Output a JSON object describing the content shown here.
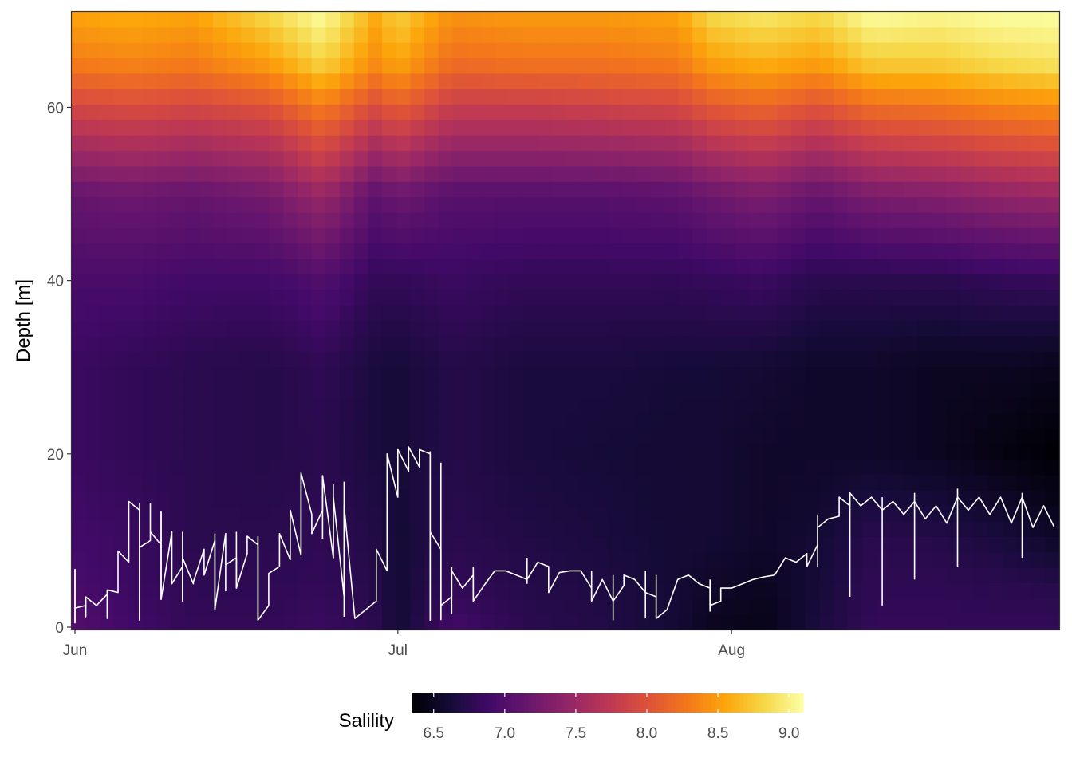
{
  "chart_data": {
    "type": "heatmap",
    "title": "",
    "xlabel": "",
    "ylabel": "Depth [m]",
    "x_range": [
      "2000-06-01",
      "2000-08-31"
    ],
    "ylim": [
      0,
      71
    ],
    "x_ticks": [
      {
        "date": "2000-06-01",
        "label": "Jun"
      },
      {
        "date": "2000-07-01",
        "label": "Jul"
      },
      {
        "date": "2000-08-01",
        "label": "Aug"
      }
    ],
    "y_ticks": [
      0,
      20,
      40,
      60
    ],
    "colorscale": "inferno",
    "grid": false,
    "legend": {
      "title": "Salility",
      "position": "bottom",
      "range": [
        6.35,
        9.1
      ],
      "ticks": [
        6.5,
        7.0,
        7.5,
        8.0,
        8.5,
        9.0
      ],
      "tick_labels": [
        "6.5",
        "7.0",
        "7.5",
        "8.0",
        "8.5",
        "9.0"
      ]
    },
    "salinity_profile": {
      "depths": [
        0,
        5,
        10,
        20,
        30,
        40,
        50,
        60,
        65,
        71
      ],
      "columns": [
        {
          "date": "2000-06-01",
          "values": [
            7.0,
            6.95,
            6.9,
            6.85,
            6.85,
            6.95,
            7.15,
            7.9,
            8.3,
            8.55
          ]
        },
        {
          "date": "2000-06-06",
          "values": [
            6.9,
            6.85,
            6.85,
            6.8,
            6.8,
            6.95,
            7.2,
            7.95,
            8.35,
            8.6
          ]
        },
        {
          "date": "2000-06-12",
          "values": [
            6.8,
            6.78,
            6.75,
            6.75,
            6.75,
            6.9,
            7.15,
            7.9,
            8.3,
            8.55
          ]
        },
        {
          "date": "2000-06-19",
          "values": [
            6.8,
            6.78,
            6.75,
            6.72,
            6.72,
            6.9,
            7.25,
            8.0,
            8.5,
            8.85
          ]
        },
        {
          "date": "2000-06-24",
          "values": [
            6.85,
            6.8,
            6.78,
            6.75,
            6.78,
            7.0,
            7.5,
            8.3,
            8.8,
            9.1
          ]
        },
        {
          "date": "2000-06-29",
          "values": [
            6.75,
            6.72,
            6.7,
            6.65,
            6.65,
            6.8,
            7.1,
            7.95,
            8.4,
            8.6
          ]
        },
        {
          "date": "2000-07-01",
          "values": [
            6.6,
            6.6,
            6.6,
            6.62,
            6.62,
            6.8,
            7.2,
            8.1,
            8.55,
            8.8
          ]
        },
        {
          "date": "2000-07-06",
          "values": [
            6.9,
            6.8,
            6.75,
            6.72,
            6.72,
            6.85,
            7.05,
            7.8,
            8.2,
            8.45
          ]
        },
        {
          "date": "2000-07-13",
          "values": [
            6.75,
            6.72,
            6.7,
            6.65,
            6.65,
            6.8,
            7.05,
            7.8,
            8.25,
            8.5
          ]
        },
        {
          "date": "2000-07-20",
          "values": [
            6.7,
            6.68,
            6.65,
            6.62,
            6.65,
            6.8,
            7.05,
            7.85,
            8.25,
            8.5
          ]
        },
        {
          "date": "2000-07-27",
          "values": [
            6.6,
            6.6,
            6.6,
            6.6,
            6.62,
            6.8,
            7.1,
            7.9,
            8.3,
            8.55
          ]
        },
        {
          "date": "2000-07-30",
          "values": [
            6.5,
            6.55,
            6.6,
            6.6,
            6.62,
            6.82,
            7.2,
            8.05,
            8.5,
            8.85
          ]
        },
        {
          "date": "2000-08-04",
          "values": [
            6.45,
            6.5,
            6.55,
            6.55,
            6.6,
            6.85,
            7.3,
            8.15,
            8.6,
            8.95
          ]
        },
        {
          "date": "2000-08-09",
          "values": [
            6.65,
            6.62,
            6.6,
            6.55,
            6.55,
            6.75,
            7.15,
            8.0,
            8.5,
            8.85
          ]
        },
        {
          "date": "2000-08-14",
          "values": [
            6.8,
            6.78,
            6.75,
            6.55,
            6.55,
            6.75,
            7.3,
            8.2,
            8.75,
            9.1
          ]
        },
        {
          "date": "2000-08-20",
          "values": [
            6.8,
            6.78,
            6.72,
            6.5,
            6.5,
            6.75,
            7.35,
            8.25,
            8.75,
            9.05
          ]
        },
        {
          "date": "2000-08-26",
          "values": [
            6.8,
            6.75,
            6.65,
            6.42,
            6.5,
            6.8,
            7.45,
            8.35,
            8.85,
            9.1
          ]
        },
        {
          "date": "2000-08-31",
          "values": [
            6.8,
            6.72,
            6.55,
            6.35,
            6.48,
            6.82,
            7.5,
            8.4,
            8.9,
            9.1
          ]
        }
      ]
    },
    "overlay_series": {
      "name": "",
      "color": "#ffffff",
      "points": [
        [
          "2000-06-01",
          6.7
        ],
        [
          "2000-06-01",
          0.5
        ],
        [
          "2000-06-01",
          2.2
        ],
        [
          "2000-06-02",
          2.5
        ],
        [
          "2000-06-02",
          1.2
        ],
        [
          "2000-06-02",
          3.5
        ],
        [
          "2000-06-03",
          2.5
        ],
        [
          "2000-06-04",
          3.8
        ],
        [
          "2000-06-04",
          1.0
        ],
        [
          "2000-06-04",
          4.3
        ],
        [
          "2000-06-05",
          4.0
        ],
        [
          "2000-06-05",
          8.8
        ],
        [
          "2000-06-06",
          7.5
        ],
        [
          "2000-06-06",
          14.5
        ],
        [
          "2000-06-07",
          13.5
        ],
        [
          "2000-06-07",
          0.8
        ],
        [
          "2000-06-07",
          9.2
        ],
        [
          "2000-06-08",
          10.0
        ],
        [
          "2000-06-08",
          14.3
        ],
        [
          "2000-06-08",
          11.0
        ],
        [
          "2000-06-09",
          9.5
        ],
        [
          "2000-06-09",
          13.3
        ],
        [
          "2000-06-09",
          3.2
        ],
        [
          "2000-06-10",
          11.0
        ],
        [
          "2000-06-10",
          5.0
        ],
        [
          "2000-06-11",
          7.0
        ],
        [
          "2000-06-11",
          3.0
        ],
        [
          "2000-06-11",
          8.0
        ],
        [
          "2000-06-12",
          5.0
        ],
        [
          "2000-06-12",
          5.2
        ],
        [
          "2000-06-13",
          9.0
        ],
        [
          "2000-06-13",
          6.0
        ],
        [
          "2000-06-14",
          10.0
        ],
        [
          "2000-06-14",
          2.0
        ],
        [
          "2000-06-15",
          10.8
        ],
        [
          "2000-06-15",
          4.2
        ],
        [
          "2000-06-15",
          7.2
        ],
        [
          "2000-06-16",
          8.0
        ],
        [
          "2000-06-16",
          4.5
        ],
        [
          "2000-06-17",
          8.5
        ],
        [
          "2000-06-17",
          10.5
        ],
        [
          "2000-06-18",
          9.5
        ],
        [
          "2000-06-18",
          0.8
        ],
        [
          "2000-06-19",
          2.5
        ],
        [
          "2000-06-19",
          6.2
        ],
        [
          "2000-06-20",
          7.0
        ],
        [
          "2000-06-20",
          10.8
        ],
        [
          "2000-06-21",
          7.8
        ],
        [
          "2000-06-21",
          13.5
        ],
        [
          "2000-06-22",
          8.3
        ],
        [
          "2000-06-22",
          17.8
        ],
        [
          "2000-06-23",
          13.0
        ],
        [
          "2000-06-23",
          10.8
        ],
        [
          "2000-06-24",
          13.5
        ],
        [
          "2000-06-24",
          17.5
        ],
        [
          "2000-06-25",
          8.0
        ],
        [
          "2000-06-25",
          15.0
        ],
        [
          "2000-06-26",
          3.5
        ],
        [
          "2000-06-26",
          14.0
        ],
        [
          "2000-06-27",
          1.0
        ],
        [
          "2000-06-28",
          2.0
        ],
        [
          "2000-06-29",
          3.0
        ],
        [
          "2000-06-29",
          9.0
        ],
        [
          "2000-06-30",
          6.5
        ],
        [
          "2000-06-30",
          20.0
        ],
        [
          "2000-07-01",
          15.0
        ],
        [
          "2000-07-01",
          20.5
        ],
        [
          "2000-07-02",
          18.0
        ],
        [
          "2000-07-02",
          20.8
        ],
        [
          "2000-07-03",
          18.5
        ],
        [
          "2000-07-03",
          20.5
        ],
        [
          "2000-07-04",
          20.0
        ],
        [
          "2000-07-04",
          0.8
        ],
        [
          "2000-07-04",
          11.0
        ],
        [
          "2000-07-05",
          9.0
        ],
        [
          "2000-07-05",
          1.0
        ],
        [
          "2000-07-05",
          2.5
        ],
        [
          "2000-07-06",
          3.5
        ],
        [
          "2000-07-06",
          6.5
        ],
        [
          "2000-07-07",
          4.5
        ],
        [
          "2000-07-08",
          6.0
        ],
        [
          "2000-07-08",
          3.0
        ],
        [
          "2000-07-09",
          4.8
        ],
        [
          "2000-07-10",
          6.5
        ],
        [
          "2000-07-11",
          6.5
        ],
        [
          "2000-07-12",
          6.0
        ],
        [
          "2000-07-13",
          5.5
        ],
        [
          "2000-07-14",
          7.5
        ],
        [
          "2000-07-15",
          7.0
        ],
        [
          "2000-07-15",
          4.0
        ],
        [
          "2000-07-16",
          6.3
        ],
        [
          "2000-07-17",
          6.5
        ],
        [
          "2000-07-18",
          6.5
        ],
        [
          "2000-07-19",
          4.5
        ],
        [
          "2000-07-19",
          3.0
        ],
        [
          "2000-07-20",
          5.5
        ],
        [
          "2000-07-21",
          3.0
        ],
        [
          "2000-07-22",
          4.8
        ],
        [
          "2000-07-22",
          6.0
        ],
        [
          "2000-07-23",
          5.5
        ],
        [
          "2000-07-24",
          4.0
        ],
        [
          "2000-07-25",
          3.5
        ],
        [
          "2000-07-25",
          1.0
        ],
        [
          "2000-07-26",
          2.0
        ],
        [
          "2000-07-27",
          5.5
        ],
        [
          "2000-07-28",
          6.0
        ],
        [
          "2000-07-29",
          5.0
        ],
        [
          "2000-07-30",
          4.5
        ],
        [
          "2000-07-30",
          2.5
        ],
        [
          "2000-07-31",
          3.0
        ],
        [
          "2000-07-31",
          4.5
        ],
        [
          "2000-08-01",
          4.5
        ],
        [
          "2000-08-02",
          5.0
        ],
        [
          "2000-08-03",
          5.5
        ],
        [
          "2000-08-04",
          5.8
        ],
        [
          "2000-08-05",
          6.0
        ],
        [
          "2000-08-06",
          8.0
        ],
        [
          "2000-08-07",
          7.5
        ],
        [
          "2000-08-08",
          8.5
        ],
        [
          "2000-08-08",
          7.0
        ],
        [
          "2000-08-09",
          9.5
        ],
        [
          "2000-08-09",
          11.5
        ],
        [
          "2000-08-10",
          12.5
        ],
        [
          "2000-08-11",
          12.8
        ],
        [
          "2000-08-11",
          15.0
        ],
        [
          "2000-08-12",
          14.0
        ],
        [
          "2000-08-12",
          15.5
        ],
        [
          "2000-08-13",
          14.0
        ],
        [
          "2000-08-14",
          15.0
        ],
        [
          "2000-08-15",
          13.5
        ],
        [
          "2000-08-16",
          14.5
        ],
        [
          "2000-08-17",
          13.0
        ],
        [
          "2000-08-18",
          14.5
        ],
        [
          "2000-08-19",
          12.5
        ],
        [
          "2000-08-20",
          14.0
        ],
        [
          "2000-08-21",
          12.0
        ],
        [
          "2000-08-22",
          15.0
        ],
        [
          "2000-08-23",
          13.5
        ],
        [
          "2000-08-24",
          15.0
        ],
        [
          "2000-08-25",
          13.0
        ],
        [
          "2000-08-26",
          15.0
        ],
        [
          "2000-08-27",
          12.0
        ],
        [
          "2000-08-28",
          15.0
        ],
        [
          "2000-08-29",
          11.5
        ],
        [
          "2000-08-30",
          14.0
        ],
        [
          "2000-08-31",
          11.5
        ]
      ],
      "spikes": [
        [
          "2000-06-01",
          0.5,
          6.7
        ],
        [
          "2000-06-02",
          1.2,
          3.5
        ],
        [
          "2000-06-04",
          1.0,
          4.3
        ],
        [
          "2000-06-07",
          0.8,
          14.3
        ],
        [
          "2000-06-09",
          3.2,
          13.3
        ],
        [
          "2000-06-11",
          3.0,
          11.0
        ],
        [
          "2000-06-14",
          2.0,
          10.8
        ],
        [
          "2000-06-16",
          4.5,
          11.0
        ],
        [
          "2000-06-18",
          0.8,
          10.5
        ],
        [
          "2000-06-22",
          8.3,
          17.8
        ],
        [
          "2000-06-24",
          10.2,
          17.5
        ],
        [
          "2000-06-25",
          8.0,
          16.5
        ],
        [
          "2000-06-26",
          1.2,
          16.8
        ],
        [
          "2000-06-30",
          6.5,
          20.0
        ],
        [
          "2000-07-04",
          0.8,
          20.3
        ],
        [
          "2000-07-05",
          0.8,
          19.0
        ],
        [
          "2000-07-06",
          1.5,
          7.0
        ],
        [
          "2000-07-08",
          3.0,
          7.0
        ],
        [
          "2000-07-13",
          5.0,
          8.0
        ],
        [
          "2000-07-19",
          3.0,
          6.5
        ],
        [
          "2000-07-21",
          0.8,
          6.0
        ],
        [
          "2000-07-24",
          1.0,
          6.5
        ],
        [
          "2000-07-25",
          1.0,
          6.0
        ],
        [
          "2000-07-30",
          1.8,
          5.5
        ],
        [
          "2000-08-09",
          7.0,
          13.0
        ],
        [
          "2000-08-12",
          3.5,
          15.0
        ],
        [
          "2000-08-15",
          2.5,
          15.0
        ],
        [
          "2000-08-18",
          5.5,
          15.5
        ],
        [
          "2000-08-22",
          7.0,
          16.0
        ],
        [
          "2000-08-28",
          8.0,
          15.5
        ]
      ]
    }
  }
}
